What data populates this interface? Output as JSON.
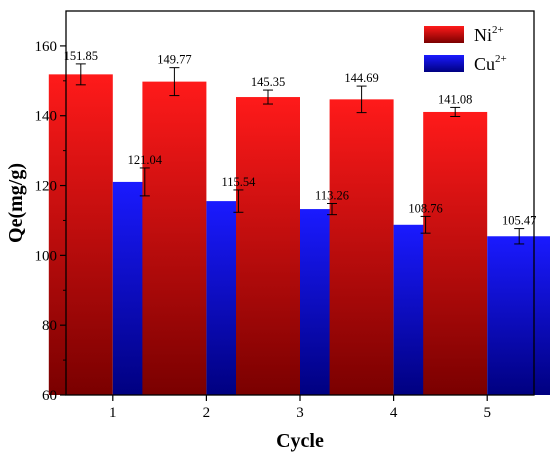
{
  "chart_data": {
    "type": "bar",
    "xlabel": "Cycle",
    "ylabel": "Qe(mg/g)",
    "ylim": [
      60,
      170
    ],
    "yticks": [
      60,
      80,
      100,
      120,
      140,
      160
    ],
    "categories": [
      "1",
      "2",
      "3",
      "4",
      "5"
    ],
    "series": [
      {
        "name": "Ni",
        "name_sup": "2+",
        "values": [
          151.85,
          149.77,
          145.35,
          144.69,
          141.08
        ],
        "labels": [
          "151.85",
          "149.77",
          "145.35",
          "144.69",
          "141.08"
        ],
        "errors": [
          3.0,
          4.0,
          2.0,
          3.8,
          1.3
        ],
        "color_top": "#ff1a1a",
        "color_bottom": "#7a0000"
      },
      {
        "name": "Cu",
        "name_sup": "2+",
        "values": [
          121.04,
          115.54,
          113.26,
          108.76,
          105.47
        ],
        "labels": [
          "121.04",
          "115.54",
          "113.26",
          "108.76",
          "105.47"
        ],
        "errors": [
          4.0,
          3.2,
          1.6,
          2.4,
          2.2
        ],
        "color_top": "#1a1aff",
        "color_bottom": "#000080"
      }
    ],
    "legend_position": "top-right",
    "grid": false
  }
}
